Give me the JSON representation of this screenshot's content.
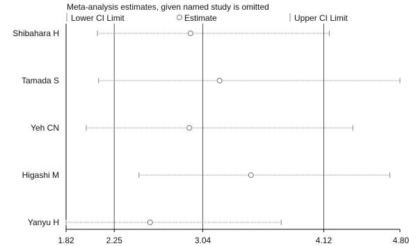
{
  "chart_data": {
    "type": "forest",
    "title": "Meta-analysis estimates, given named study is omitted",
    "legend": {
      "placement": "top",
      "entries": [
        {
          "name": "Lower CI Limit",
          "marker": "bar"
        },
        {
          "name": "Estimate",
          "marker": "circle"
        },
        {
          "name": "Upper CI Limit",
          "marker": "bar"
        }
      ]
    },
    "x_axis": {
      "min": 1.82,
      "max": 4.8,
      "ticks": [
        1.82,
        2.25,
        3.04,
        4.12,
        4.8
      ],
      "tick_labels": [
        "1.82",
        "2.25",
        "3.04",
        "4.12",
        "4.80"
      ]
    },
    "reference_lines": [
      2.25,
      3.04,
      4.12
    ],
    "studies": [
      {
        "name": "Shibahara H",
        "lower": 2.1,
        "estimate": 2.93,
        "upper": 4.17
      },
      {
        "name": "Tamada S",
        "lower": 2.11,
        "estimate": 3.19,
        "upper": 4.8
      },
      {
        "name": "Yeh CN",
        "lower": 2.0,
        "estimate": 2.92,
        "upper": 4.38
      },
      {
        "name": "Higashi M",
        "lower": 2.47,
        "estimate": 3.47,
        "upper": 4.71
      },
      {
        "name": "Yanyu H",
        "lower": 1.82,
        "estimate": 2.57,
        "upper": 3.74
      }
    ],
    "colors": {
      "axis": "#000000",
      "refline": "#555555",
      "ci_line": "#8a8a8a",
      "marker": "#777777"
    }
  }
}
